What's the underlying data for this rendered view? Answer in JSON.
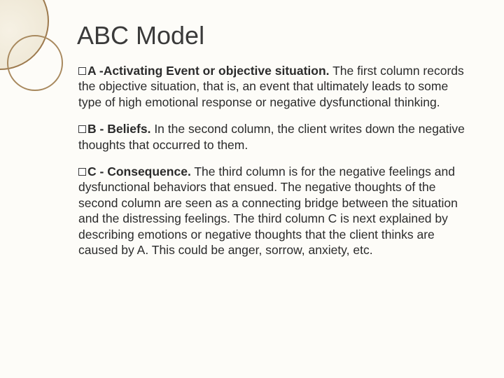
{
  "slide": {
    "title": "ABC Model",
    "decor": {
      "circle_border_color": "#9d7a4e",
      "circle_fill_light": "#f6f1e4",
      "circle_fill_dark": "#e8dfc8",
      "background_color": "#fdfcf8"
    },
    "title_fontsize": 36,
    "body_fontsize": 17.5,
    "text_color": "#2b2b2b",
    "items": [
      {
        "letter": "A",
        "lead": " -Activating Event or objective situation.",
        "body": " The first column records the objective situation, that is, an event that ultimately leads to some type of high emotional response or negative dysfunctional thinking."
      },
      {
        "letter": "B",
        "lead": " - Beliefs.",
        "body": " In the second column, the client writes down the negative thoughts that occurred to them."
      },
      {
        "letter": "C",
        "lead": " - Consequence.",
        "body": " The third column is for the negative feelings and dysfunctional behaviors that ensued. The negative thoughts of the second column are seen as a connecting bridge between the situation and the distressing feelings. The third column C is next explained by describing emotions or negative thoughts that the client thinks are caused by A. This could be anger, sorrow, anxiety, etc."
      }
    ]
  }
}
